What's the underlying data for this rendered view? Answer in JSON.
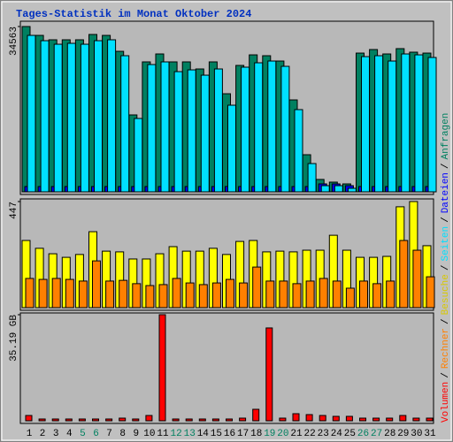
{
  "title": "Tages-Statistik im Monat Oktober 2024",
  "legend_separator": "/",
  "chart_data": [
    {
      "type": "bar",
      "series": [
        {
          "name": "Anfragen",
          "color": "#008060",
          "values": [
            34563,
            32710,
            31790,
            31790,
            31790,
            32900,
            32710,
            29380,
            16080,
            27170,
            28830,
            27170,
            27170,
            25690,
            27170,
            20510,
            26430,
            28640,
            28460,
            27350,
            19220,
            7760,
            2590,
            2030,
            1660,
            29010,
            29750,
            28830,
            29940,
            29200,
            29010
          ]
        },
        {
          "name": "Dateien",
          "color": "#0000ff",
          "values": [
            1100,
            1100,
            1100,
            1100,
            1100,
            1100,
            1100,
            1100,
            1100,
            1100,
            1100,
            1100,
            1100,
            1100,
            1100,
            1100,
            1100,
            1100,
            1100,
            1100,
            1100,
            1100,
            1660,
            1660,
            1290,
            1100,
            1100,
            1100,
            1100,
            1100,
            1100
          ]
        },
        {
          "name": "Seiten",
          "color": "#00e0ff",
          "values": [
            32710,
            31600,
            30860,
            31050,
            30860,
            31600,
            31790,
            28460,
            15340,
            26610,
            27170,
            25130,
            25500,
            24390,
            25690,
            18110,
            26060,
            26980,
            27350,
            26240,
            17190,
            5910,
            1290,
            1290,
            740,
            28270,
            28460,
            27350,
            28830,
            28640,
            28090
          ]
        }
      ],
      "ylim": [
        0,
        34563
      ],
      "yticks": [
        34563
      ]
    },
    {
      "type": "bar",
      "series": [
        {
          "name": "Besuche",
          "color": "#ffff00",
          "values": [
            283,
            250,
            227,
            212,
            224,
            320,
            238,
            235,
            205,
            205,
            227,
            257,
            238,
            238,
            250,
            224,
            279,
            283,
            235,
            238,
            235,
            242,
            242,
            305,
            242,
            212,
            212,
            216,
            425,
            447,
            261
          ]
        },
        {
          "name": "Rechner",
          "color": "#ff8000",
          "values": [
            123,
            119,
            123,
            119,
            112,
            197,
            112,
            115,
            101,
            93,
            97,
            123,
            104,
            97,
            104,
            119,
            104,
            171,
            112,
            112,
            101,
            112,
            123,
            112,
            82,
            112,
            101,
            112,
            283,
            242,
            130
          ]
        }
      ],
      "ylim": [
        0,
        447
      ],
      "yticks": [
        447
      ]
    },
    {
      "type": "bar",
      "categories": [
        "1",
        "2",
        "3",
        "4",
        "5",
        "6",
        "7",
        "8",
        "9",
        "10",
        "11",
        "12",
        "13",
        "14",
        "15",
        "16",
        "17",
        "18",
        "19",
        "20",
        "21",
        "22",
        "23",
        "24",
        "25",
        "26",
        "27",
        "28",
        "29",
        "30",
        "31"
      ],
      "category_colors": [
        "#000000",
        "#000000",
        "#000000",
        "#000000",
        "#008060",
        "#008060",
        "#000000",
        "#000000",
        "#000000",
        "#000000",
        "#000000",
        "#008060",
        "#008060",
        "#000000",
        "#000000",
        "#000000",
        "#000000",
        "#000000",
        "#008060",
        "#008060",
        "#000000",
        "#000000",
        "#000000",
        "#000000",
        "#000000",
        "#008060",
        "#008060",
        "#000000",
        "#000000",
        "#000000",
        "#000000"
      ],
      "series": [
        {
          "name": "Volumen",
          "color": "#ff0000",
          "values": [
            1.76,
            0.59,
            0.59,
            0.59,
            0.59,
            0.59,
            0.59,
            0.88,
            0.59,
            1.76,
            35.19,
            0.59,
            0.59,
            0.59,
            0.59,
            0.59,
            0.88,
            3.81,
            30.8,
            0.88,
            2.35,
            2.05,
            1.76,
            1.47,
            1.47,
            0.88,
            0.88,
            0.88,
            1.76,
            0.88,
            0.88
          ]
        }
      ],
      "ylim": [
        0,
        35.19
      ],
      "yticks": [
        {
          "value": 35.19,
          "label": "35.19 GB"
        }
      ]
    }
  ]
}
